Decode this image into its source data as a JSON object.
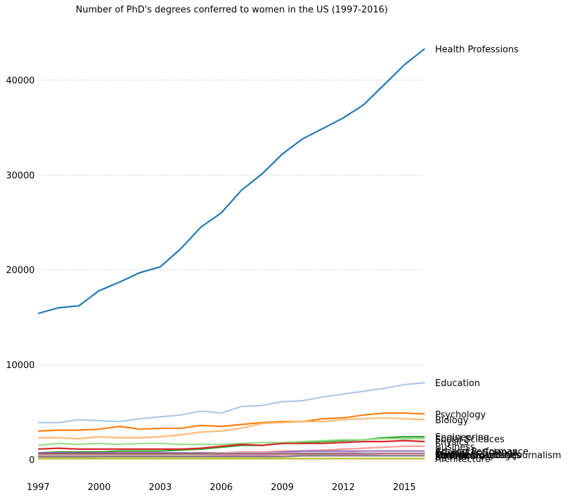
{
  "chart_data": {
    "type": "line",
    "title": "Number of PhD's degrees conferred to women in the US (1997-2016)",
    "xlabel": "",
    "ylabel": "",
    "x": [
      1997,
      1998,
      1999,
      2000,
      2001,
      2002,
      2003,
      2004,
      2005,
      2006,
      2007,
      2008,
      2009,
      2010,
      2011,
      2012,
      2013,
      2014,
      2015,
      2016
    ],
    "xlim": [
      1997,
      2016
    ],
    "ylim": [
      0,
      45000
    ],
    "xticks": [
      1997,
      2000,
      2003,
      2006,
      2009,
      2012,
      2015
    ],
    "yticks": [
      0,
      10000,
      20000,
      30000,
      40000
    ],
    "grid": "horizontal",
    "legend": "labels at line ends (right)",
    "series": [
      {
        "name": "Health Professions",
        "color": "#1f77b4",
        "values": [
          15400,
          16000,
          16200,
          17800,
          18700,
          19700,
          20300,
          22200,
          24500,
          26000,
          28400,
          30100,
          32200,
          33800,
          34900,
          36000,
          37400,
          39500,
          41600,
          43300
        ]
      },
      {
        "name": "Education",
        "color": "#aec7e8",
        "values": [
          3900,
          3900,
          4200,
          4100,
          4000,
          4300,
          4500,
          4700,
          5100,
          4900,
          5600,
          5700,
          6100,
          6200,
          6600,
          6900,
          7200,
          7500,
          7900,
          8100
        ]
      },
      {
        "name": "Psychology",
        "color": "#ff7f0e",
        "values": [
          3000,
          3100,
          3100,
          3200,
          3500,
          3200,
          3300,
          3300,
          3600,
          3500,
          3700,
          3900,
          4000,
          4000,
          4300,
          4400,
          4700,
          4900,
          4900,
          4800
        ]
      },
      {
        "name": "Biology",
        "color": "#ffbb78",
        "values": [
          2300,
          2300,
          2200,
          2400,
          2300,
          2300,
          2400,
          2600,
          2900,
          3000,
          3300,
          3800,
          3900,
          4000,
          4000,
          4200,
          4300,
          4400,
          4300,
          4200
        ]
      },
      {
        "name": "Engineering",
        "color": "#2ca02c",
        "values": [
          700,
          800,
          800,
          800,
          900,
          900,
          900,
          1000,
          1100,
          1300,
          1500,
          1500,
          1700,
          1800,
          1900,
          2000,
          2100,
          2300,
          2400,
          2400
        ]
      },
      {
        "name": "Social Sciences",
        "color": "#98df8a",
        "values": [
          1500,
          1700,
          1600,
          1700,
          1600,
          1700,
          1700,
          1600,
          1600,
          1600,
          1700,
          1800,
          1800,
          1900,
          2000,
          2100,
          2100,
          2200,
          2200,
          2200
        ]
      },
      {
        "name": "Physics",
        "color": "#d62728",
        "values": [
          1100,
          1200,
          1100,
          1100,
          1100,
          1100,
          1100,
          1100,
          1200,
          1400,
          1600,
          1500,
          1700,
          1700,
          1700,
          1800,
          1900,
          1900,
          2000,
          1900
        ]
      },
      {
        "name": "Business",
        "color": "#ff9896",
        "values": [
          500,
          500,
          500,
          600,
          600,
          600,
          600,
          600,
          600,
          700,
          800,
          800,
          900,
          900,
          1000,
          1100,
          1200,
          1300,
          1400,
          1400
        ]
      },
      {
        "name": "Art and Performance",
        "color": "#9467bd",
        "values": [
          700,
          700,
          700,
          700,
          700,
          700,
          700,
          700,
          700,
          700,
          700,
          700,
          800,
          900,
          900,
          900,
          900,
          900,
          900,
          900
        ]
      },
      {
        "name": "Computer Science",
        "color": "#c5b0d5",
        "values": [
          500,
          500,
          500,
          500,
          500,
          500,
          500,
          600,
          600,
          700,
          700,
          700,
          700,
          700,
          700,
          700,
          800,
          800,
          800,
          800
        ]
      },
      {
        "name": "English",
        "color": "#8c564b",
        "values": [
          600,
          600,
          600,
          600,
          600,
          600,
          600,
          600,
          600,
          600,
          600,
          600,
          600,
          600,
          600,
          600,
          600,
          600,
          600,
          600
        ]
      },
      {
        "name": "Foreign Languages",
        "color": "#c49c94",
        "values": [
          500,
          500,
          500,
          500,
          500,
          500,
          500,
          500,
          500,
          500,
          500,
          500,
          500,
          500,
          500,
          500,
          500,
          500,
          500,
          500
        ]
      },
      {
        "name": "Math and Statistics",
        "color": "#e377c2",
        "values": [
          300,
          300,
          300,
          300,
          300,
          300,
          300,
          300,
          300,
          400,
          400,
          400,
          400,
          400,
          400,
          500,
          500,
          500,
          500,
          500
        ]
      },
      {
        "name": "Communications\\Journalism",
        "color": "#f7b6d2",
        "values": [
          200,
          200,
          200,
          300,
          300,
          300,
          300,
          300,
          300,
          300,
          300,
          300,
          400,
          400,
          400,
          400,
          400,
          500,
          500,
          500
        ]
      },
      {
        "name": "Agriculture",
        "color": "#7f7f7f",
        "values": [
          300,
          300,
          300,
          300,
          300,
          300,
          300,
          300,
          300,
          300,
          300,
          300,
          300,
          400,
          400,
          400,
          400,
          400,
          400,
          400
        ]
      },
      {
        "name": "Architecture",
        "color": "#bcbd22",
        "values": [
          100,
          100,
          100,
          100,
          100,
          100,
          100,
          100,
          100,
          100,
          100,
          100,
          100,
          100,
          100,
          100,
          100,
          100,
          100,
          100
        ]
      }
    ]
  }
}
